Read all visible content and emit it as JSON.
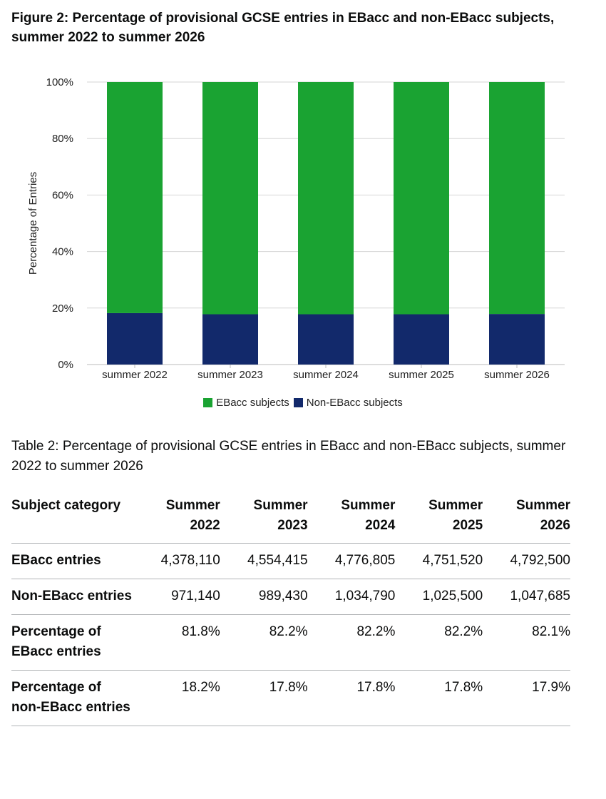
{
  "figure": {
    "title": "Figure 2: Percentage of provisional GCSE entries in EBacc and non-EBacc subjects, summer 2022 to summer 2026"
  },
  "chart_data": {
    "type": "bar",
    "stacked": true,
    "categories": [
      "summer 2022",
      "summer 2023",
      "summer 2024",
      "summer 2025",
      "summer 2026"
    ],
    "series": [
      {
        "name": "Non-EBacc subjects",
        "color": "#12296b",
        "values": [
          18.2,
          17.8,
          17.8,
          17.8,
          17.9
        ]
      },
      {
        "name": "EBacc subjects",
        "color": "#1aa332",
        "values": [
          81.8,
          82.2,
          82.2,
          82.2,
          82.1
        ]
      }
    ],
    "ylabel": "Percentage of Entries",
    "xlabel": "",
    "ylim": [
      0,
      100
    ],
    "yticks": [
      "0%",
      "20%",
      "40%",
      "60%",
      "80%",
      "100%"
    ],
    "grid": true,
    "legend_position": "bottom-center",
    "legend_order": [
      "EBacc subjects",
      "Non-EBacc subjects"
    ]
  },
  "table": {
    "caption": "Table 2: Percentage of provisional GCSE entries in EBacc and non-EBacc subjects, summer 2022 to summer 2026",
    "headers": [
      "Subject category",
      "Summer 2022",
      "Summer 2023",
      "Summer 2024",
      "Summer 2025",
      "Summer 2026"
    ],
    "rows": [
      [
        "EBacc entries",
        "4,378,110",
        "4,554,415",
        "4,776,805",
        "4,751,520",
        "4,792,500"
      ],
      [
        "Non-EBacc entries",
        "971,140",
        "989,430",
        "1,034,790",
        "1,025,500",
        "1,047,685"
      ],
      [
        "Percentage of EBacc entries",
        "81.8%",
        "82.2%",
        "82.2%",
        "82.2%",
        "82.1%"
      ],
      [
        "Percentage of non-EBacc entries",
        "18.2%",
        "17.8%",
        "17.8%",
        "17.8%",
        "17.9%"
      ]
    ]
  }
}
